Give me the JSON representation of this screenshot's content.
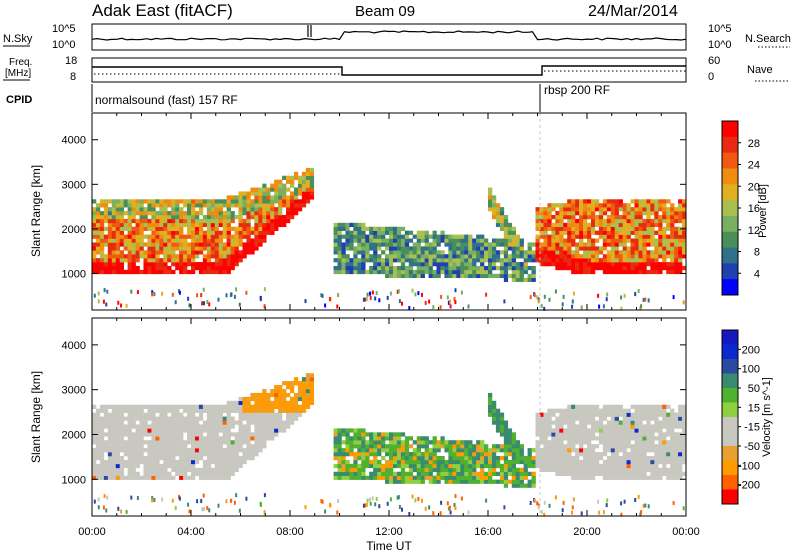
{
  "header": {
    "station": "Adak East (fitACF)",
    "beam": "Beam 09",
    "date": "24/Mar/2014"
  },
  "noise_panel": {
    "left_label": "N.Sky",
    "right_label": "N.Search",
    "left_ticks": [
      "10^5",
      "10^0"
    ],
    "right_ticks": [
      "10^5",
      "10^0"
    ]
  },
  "freq_panel": {
    "left_label_1": "Freq.",
    "left_label_2": "[MHz]",
    "right_label": "Nave",
    "left_ticks": [
      "18",
      "8"
    ],
    "right_ticks": [
      "60",
      "0"
    ]
  },
  "cpid_panel": {
    "label": "CPID",
    "mode_1": "normalsound (fast) 157 RF",
    "mode_2": "rbsp 200 RF"
  },
  "colors": {
    "power": [
      "#0000ff",
      "#2040b0",
      "#30708a",
      "#4a8f5a",
      "#78b060",
      "#a8c050",
      "#e0b020",
      "#f08c10",
      "#f05a10",
      "#e82a10",
      "#ff0000"
    ],
    "velocity": [
      "#ff0000",
      "#ff6000",
      "#ff9a00",
      "#e8a030",
      "#c8c8c0",
      "#c8c8c0",
      "#90d040",
      "#50b030",
      "#3a8a70",
      "#2a4aa0",
      "#0a2ad0",
      "#1818c0"
    ]
  },
  "chart_data": [
    {
      "type": "heatmap",
      "name": "power",
      "xlabel": "Time UT",
      "ylabel": "Slant Range [km]",
      "xlim": [
        0,
        24
      ],
      "ylim": [
        180,
        4600
      ],
      "x_ticks": [
        "00:00",
        "04:00",
        "08:00",
        "12:00",
        "16:00",
        "20:00",
        "00:00"
      ],
      "y_ticks": [
        1000,
        2000,
        3000,
        4000
      ],
      "colorbar": {
        "label": "Power [dB]",
        "ticks": [
          "28",
          "24",
          "20",
          "16",
          "12",
          "8",
          "4"
        ],
        "range": [
          0,
          30
        ]
      }
    },
    {
      "type": "heatmap",
      "name": "velocity",
      "xlabel": "Time UT",
      "ylabel": "Slant Range [km]",
      "xlim": [
        0,
        24
      ],
      "ylim": [
        180,
        4600
      ],
      "x_ticks": [
        "00:00",
        "04:00",
        "08:00",
        "12:00",
        "16:00",
        "20:00",
        "00:00"
      ],
      "y_ticks": [
        1000,
        2000,
        3000,
        4000
      ],
      "colorbar": {
        "label": "Velocity [m s^-1]",
        "ticks": [
          "200",
          "100",
          "50",
          "15",
          "-15",
          "-50",
          "-100",
          "-200"
        ],
        "range": [
          -250,
          250
        ]
      }
    }
  ]
}
